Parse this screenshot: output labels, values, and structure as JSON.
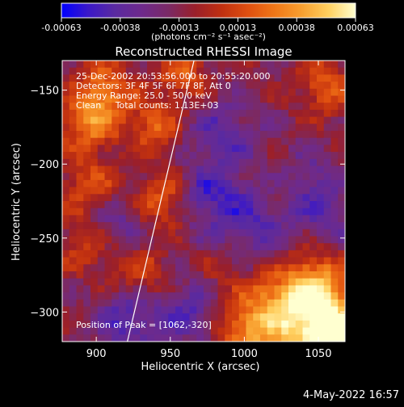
{
  "colorbar": {
    "ticks": [
      "-0.00063",
      "-0.00038",
      "-0.00013",
      "0.00013",
      "0.00038",
      "0.00063"
    ],
    "unit_label": "(photons cm⁻² s⁻¹ asec⁻²)",
    "colormap": [
      "#0000ff",
      "#3b18c8",
      "#5a2aa0",
      "#6e2a8c",
      "#7a2a66",
      "#9a1f2a",
      "#c03010",
      "#e05010",
      "#f07818",
      "#f8a030",
      "#ffd060",
      "#ffffd0"
    ]
  },
  "chart_data": {
    "type": "heatmap",
    "title": "Reconstructed RHESSI Image",
    "xlabel": "Heliocentric X (arcsec)",
    "ylabel": "Heliocentric Y (arcsec)",
    "xlim": [
      877,
      1068
    ],
    "ylim": [
      -320,
      -130
    ],
    "x_ticks": [
      900,
      950,
      1000,
      1050
    ],
    "y_ticks": [
      -150,
      -200,
      -250,
      -300
    ],
    "value_range": [
      -0.00063,
      0.00063
    ],
    "annotations": [
      "25-Dec-2002 20:53:56.000 to 20:55:20.000",
      "Detectors: 3F 4F 5F 6F 7F 8F, Att 0",
      "Energy Range: 25.0 - 50.0 keV",
      "Clean     Total counts: 1.13E+03"
    ],
    "peak_label": "Position of Peak = [1062,-320]",
    "limb_line": {
      "x": [
        921,
        966
      ],
      "y": [
        -320,
        -130
      ]
    },
    "grid_cols": 40,
    "grid_rows": 40,
    "hotspots": [
      {
        "x": 1062,
        "y": -318,
        "v": 0.00063,
        "r": 16
      },
      {
        "x": 1040,
        "y": -305,
        "v": 0.00045,
        "r": 22
      },
      {
        "x": 1048,
        "y": -282,
        "v": 0.00042,
        "r": 14
      },
      {
        "x": 1015,
        "y": -298,
        "v": 0.0003,
        "r": 18
      },
      {
        "x": 905,
        "y": -152,
        "v": 0.0004,
        "r": 14
      },
      {
        "x": 895,
        "y": -175,
        "v": 0.00035,
        "r": 13
      },
      {
        "x": 940,
        "y": -175,
        "v": 0.00033,
        "r": 12
      },
      {
        "x": 960,
        "y": -140,
        "v": 0.0003,
        "r": 12
      },
      {
        "x": 895,
        "y": -215,
        "v": 0.00028,
        "r": 12
      },
      {
        "x": 945,
        "y": -225,
        "v": 0.0003,
        "r": 12
      },
      {
        "x": 1055,
        "y": -148,
        "v": 0.0003,
        "r": 13
      },
      {
        "x": 1025,
        "y": -215,
        "v": 0.00022,
        "r": 12
      },
      {
        "x": 930,
        "y": -275,
        "v": 0.00022,
        "r": 14
      },
      {
        "x": 890,
        "y": -255,
        "v": 0.0002,
        "r": 12
      },
      {
        "x": 985,
        "y": -265,
        "v": 0.00018,
        "r": 11
      },
      {
        "x": 1000,
        "y": -315,
        "v": 0.00025,
        "r": 12
      },
      {
        "x": 985,
        "y": -180,
        "v": -0.00025,
        "r": 18
      },
      {
        "x": 1000,
        "y": -240,
        "v": -0.0003,
        "r": 22
      },
      {
        "x": 1040,
        "y": -215,
        "v": -0.00028,
        "r": 16
      },
      {
        "x": 920,
        "y": -305,
        "v": -0.00035,
        "r": 14
      },
      {
        "x": 960,
        "y": -300,
        "v": -0.0003,
        "r": 14
      },
      {
        "x": 915,
        "y": -240,
        "v": -0.0002,
        "r": 12
      },
      {
        "x": 975,
        "y": -220,
        "v": -0.00022,
        "r": 12
      },
      {
        "x": 1060,
        "y": -240,
        "v": -0.00018,
        "r": 12
      }
    ]
  },
  "footer": {
    "timestamp": "4-May-2022 16:57"
  }
}
